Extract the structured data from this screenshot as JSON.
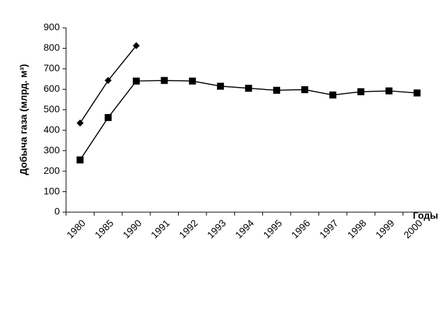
{
  "chart_data": {
    "type": "line",
    "y_label": "Добыча газа (млрд. м³)",
    "x_label": "Годы",
    "categories": [
      "1980",
      "1985",
      "1990",
      "1991",
      "1992",
      "1993",
      "1994",
      "1995",
      "1996",
      "1997",
      "1998",
      "1999",
      "2000"
    ],
    "series": [
      {
        "color": "#000000",
        "marker": "diamond",
        "values": [
          435,
          643,
          813,
          null,
          null,
          null,
          null,
          null,
          null,
          null,
          null,
          null,
          null
        ]
      },
      {
        "color": "#000000",
        "marker": "square",
        "values": [
          255,
          462,
          640,
          643,
          640,
          615,
          605,
          595,
          598,
          572,
          588,
          592,
          582
        ]
      }
    ],
    "ylim": [
      0,
      900
    ],
    "yticks": [
      0,
      100,
      200,
      300,
      400,
      500,
      600,
      700,
      800,
      900
    ],
    "grid": false
  }
}
